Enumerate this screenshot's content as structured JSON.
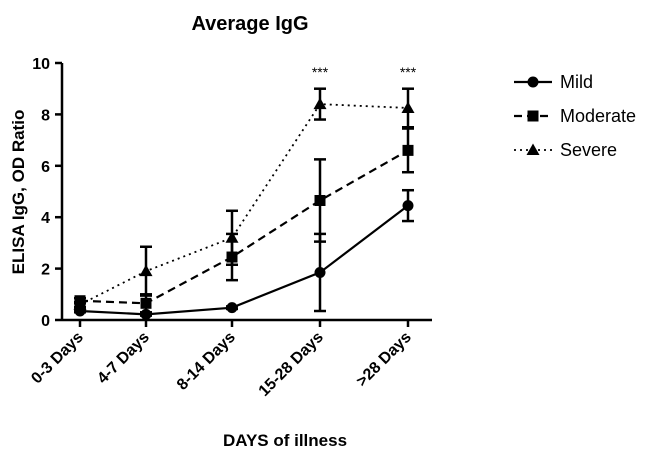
{
  "chart_data": {
    "type": "line",
    "title": "Average IgG",
    "xlabel": "DAYS of illness",
    "ylabel": "ELISA IgG, OD Ratio",
    "categories": [
      "0-3 Days",
      "4-7 Days",
      "8-14 Days",
      "15-28 Days",
      ">28 Days"
    ],
    "ylim": [
      0,
      10
    ],
    "yticks": [
      "0",
      "2",
      "4",
      "6",
      "8",
      "10"
    ],
    "grid": false,
    "legend_position": "top-right",
    "series": [
      {
        "name": "Mild",
        "marker": "circle",
        "line_style": "solid",
        "values": [
          0.35,
          0.22,
          0.48,
          1.85,
          4.45
        ],
        "error": [
          0.05,
          0.05,
          0.05,
          1.5,
          0.6
        ]
      },
      {
        "name": "Moderate",
        "marker": "square",
        "line_style": "dashed",
        "values": [
          0.75,
          0.65,
          2.45,
          4.65,
          6.6
        ],
        "error": [
          0.1,
          0.35,
          0.9,
          1.6,
          0.85
        ]
      },
      {
        "name": "Severe",
        "marker": "triangle",
        "line_style": "dotted",
        "values": [
          0.6,
          1.9,
          3.2,
          8.4,
          8.25
        ],
        "error": [
          0.1,
          0.95,
          1.05,
          0.6,
          0.75
        ]
      }
    ],
    "annotations": [
      {
        "category": "15-28 Days",
        "text": "***"
      },
      {
        "category": ">28 Days",
        "text": "***"
      }
    ]
  }
}
